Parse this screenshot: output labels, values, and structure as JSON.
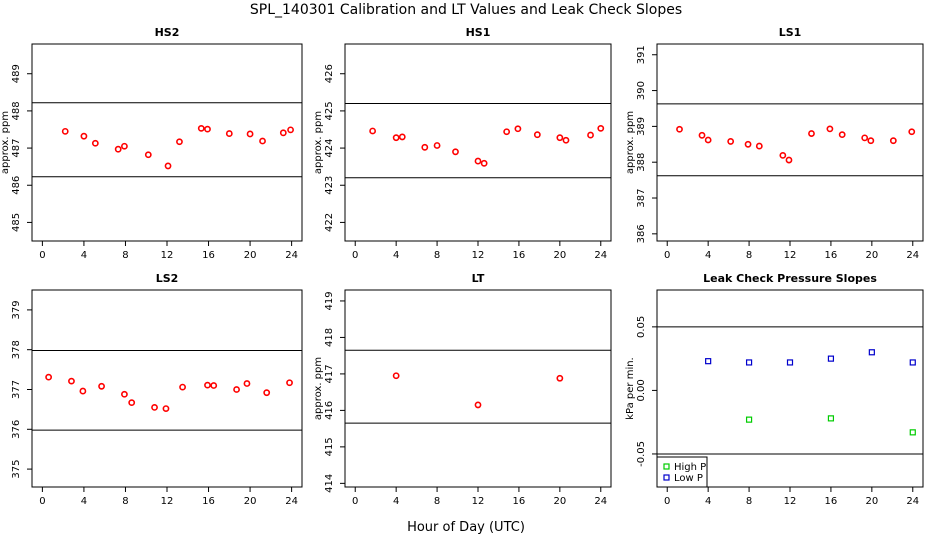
{
  "title": "SPL_140301  Calibration and LT Values and Leak Check Slopes",
  "xlabel": "Hour of Day (UTC)",
  "chart_data": [
    {
      "type": "scatter",
      "title": "HS2",
      "ylabel": "approx. ppm",
      "xlim": [
        -1,
        25
      ],
      "ylim": [
        484.5,
        489.8
      ],
      "xticks": [
        0,
        4,
        8,
        12,
        16,
        20,
        24
      ],
      "yticks": [
        485,
        486,
        487,
        488,
        489
      ],
      "hlines": [
        488.22,
        486.23
      ],
      "color": "#ff0000",
      "x": [
        2.2,
        4.0,
        5.1,
        7.3,
        7.9,
        10.2,
        12.1,
        13.2,
        15.3,
        15.9,
        18.0,
        20.0,
        21.2,
        23.2,
        23.9
      ],
      "y": [
        487.45,
        487.32,
        487.13,
        486.97,
        487.05,
        486.82,
        486.52,
        487.17,
        487.53,
        487.51,
        487.39,
        487.38,
        487.19,
        487.41,
        487.49
      ]
    },
    {
      "type": "scatter",
      "title": "HS1",
      "ylabel": "approx. ppm",
      "xlim": [
        -1,
        25
      ],
      "ylim": [
        421.5,
        426.8
      ],
      "xticks": [
        0,
        4,
        8,
        12,
        16,
        20,
        24
      ],
      "yticks": [
        422,
        423,
        424,
        425,
        426
      ],
      "hlines": [
        425.2,
        423.2
      ],
      "color": "#ff0000",
      "x": [
        1.7,
        4.0,
        4.6,
        6.8,
        8.0,
        9.8,
        12.0,
        12.6,
        14.8,
        15.9,
        17.8,
        20.0,
        20.6,
        23.0,
        24.0
      ],
      "y": [
        424.46,
        424.28,
        424.3,
        424.02,
        424.07,
        423.9,
        423.65,
        423.59,
        424.44,
        424.52,
        424.36,
        424.28,
        424.21,
        424.35,
        424.53
      ]
    },
    {
      "type": "scatter",
      "title": "LS1",
      "ylabel": "approx. ppm",
      "xlim": [
        -1,
        25
      ],
      "ylim": [
        385.8,
        391.3
      ],
      "xticks": [
        0,
        4,
        8,
        12,
        16,
        20,
        24
      ],
      "yticks": [
        386,
        387,
        388,
        389,
        390,
        391
      ],
      "hlines": [
        389.63,
        387.62
      ],
      "color": "#ff0000",
      "x": [
        1.2,
        3.4,
        4.0,
        6.2,
        7.9,
        9.0,
        11.3,
        11.9,
        14.1,
        15.9,
        17.1,
        19.3,
        19.9,
        22.1,
        23.9
      ],
      "y": [
        388.92,
        388.75,
        388.62,
        388.58,
        388.5,
        388.45,
        388.19,
        388.06,
        388.8,
        388.93,
        388.77,
        388.68,
        388.6,
        388.6,
        388.85
      ]
    },
    {
      "type": "scatter",
      "title": "LS2",
      "ylabel": "",
      "xlim": [
        -1,
        25
      ],
      "ylim": [
        374.55,
        379.5
      ],
      "xticks": [
        0,
        4,
        8,
        12,
        16,
        20,
        24
      ],
      "yticks": [
        375,
        376,
        377,
        378,
        379
      ],
      "hlines": [
        377.98,
        375.98
      ],
      "color": "#ff0000",
      "x": [
        0.6,
        2.8,
        3.9,
        5.7,
        7.9,
        8.6,
        10.8,
        11.9,
        13.5,
        15.9,
        16.5,
        18.7,
        19.7,
        21.6,
        23.8
      ],
      "y": [
        377.31,
        377.21,
        376.96,
        377.08,
        376.88,
        376.67,
        376.55,
        376.52,
        377.06,
        377.11,
        377.1,
        377.0,
        377.15,
        376.92,
        377.17
      ]
    },
    {
      "type": "scatter",
      "title": "LT",
      "ylabel": "approx. ppm",
      "xlim": [
        -1,
        25
      ],
      "ylim": [
        413.9,
        419.3
      ],
      "xticks": [
        0,
        4,
        8,
        12,
        16,
        20,
        24
      ],
      "yticks": [
        414,
        415,
        416,
        417,
        418,
        419
      ],
      "hlines": [
        417.65,
        415.65
      ],
      "color": "#ff0000",
      "x": [
        4.0,
        12.0,
        20.0
      ],
      "y": [
        416.95,
        416.15,
        416.88
      ]
    },
    {
      "type": "scatter",
      "title": "Leak Check Pressure Slopes",
      "ylabel": "kPa per min.",
      "xlim": [
        -1,
        25
      ],
      "ylim": [
        -0.076,
        0.079
      ],
      "xticks": [
        0,
        4,
        8,
        12,
        16,
        20,
        24
      ],
      "yticks": [
        -0.05,
        0.0,
        0.05
      ],
      "yticklabels": [
        "-0.05",
        "0.00",
        "0.05"
      ],
      "hlines": [
        0.05,
        -0.05
      ],
      "legend": "bottom-left",
      "series": [
        {
          "name": "High P",
          "color": "#00cc00",
          "x": [
            8,
            16,
            24
          ],
          "y": [
            -0.023,
            -0.022,
            -0.033
          ]
        },
        {
          "name": "Low P",
          "color": "#0000cc",
          "x": [
            4,
            8,
            12,
            16,
            20,
            24
          ],
          "y": [
            0.023,
            0.022,
            0.022,
            0.025,
            0.03,
            0.022
          ]
        }
      ]
    }
  ]
}
